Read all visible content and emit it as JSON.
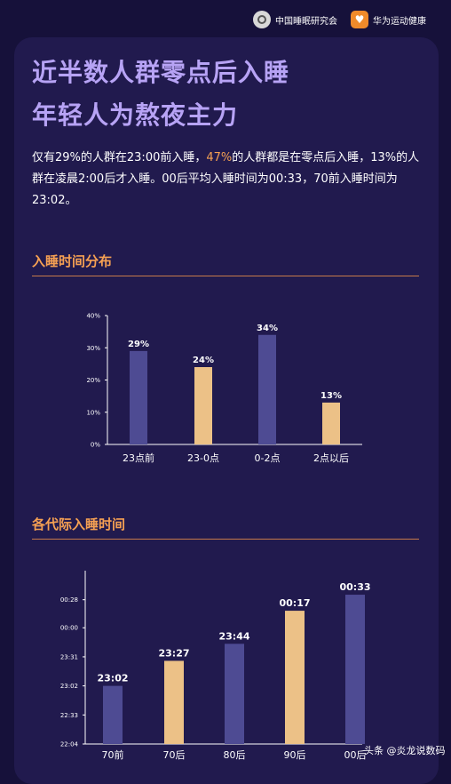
{
  "header": {
    "org1": "中国睡眠研究会",
    "org2": "华为运动健康"
  },
  "headline": {
    "line1": "近半数人群零点后入睡",
    "line2": "年轻人为熬夜主力"
  },
  "intro": {
    "part1": "仅有29%的人群在23:00前入睡，",
    "highlight": "47%",
    "part2": "的人群都是在零点后入睡，13%的人群在凌晨2:00后才入睡。00后平均入睡时间为00:33，70前入睡时间为23:02。"
  },
  "sections": {
    "s1": "入睡时间分布",
    "s2": "各代际入睡时间"
  },
  "colors": {
    "purple_bar": "#4e4b93",
    "gold_bar": "#ecc187",
    "accent": "#f5a053",
    "title": "#b7a3f5"
  },
  "chart_data": [
    {
      "type": "bar",
      "categories": [
        "23点前",
        "23-0点",
        "0-2点",
        "2点以后"
      ],
      "values": [
        29,
        24,
        34,
        13
      ],
      "value_labels": [
        "29%",
        "24%",
        "34%",
        "13%"
      ],
      "bar_colors": [
        "#4e4b93",
        "#ecc187",
        "#4e4b93",
        "#ecc187"
      ],
      "yticks": [
        "0%",
        "10%",
        "20%",
        "30%",
        "40%"
      ],
      "ylim": [
        0,
        40
      ],
      "title": "",
      "xlabel": "",
      "ylabel": ""
    },
    {
      "type": "bar",
      "categories": [
        "70前",
        "70后",
        "80后",
        "90后",
        "00后"
      ],
      "values": [
        "23:02",
        "23:27",
        "23:44",
        "00:17",
        "00:33"
      ],
      "value_labels": [
        "23:02",
        "23:27",
        "23:44",
        "00:17",
        "00:33"
      ],
      "bar_colors": [
        "#4e4b93",
        "#ecc187",
        "#4e4b93",
        "#ecc187",
        "#4e4b93"
      ],
      "yticks": [
        "22:04",
        "22:33",
        "23:02",
        "23:31",
        "00:00",
        "00:28"
      ],
      "ylim": [
        "22:04",
        "00:57"
      ],
      "title": "",
      "xlabel": "",
      "ylabel": ""
    }
  ],
  "watermark": "头条 @炎龙说数码"
}
